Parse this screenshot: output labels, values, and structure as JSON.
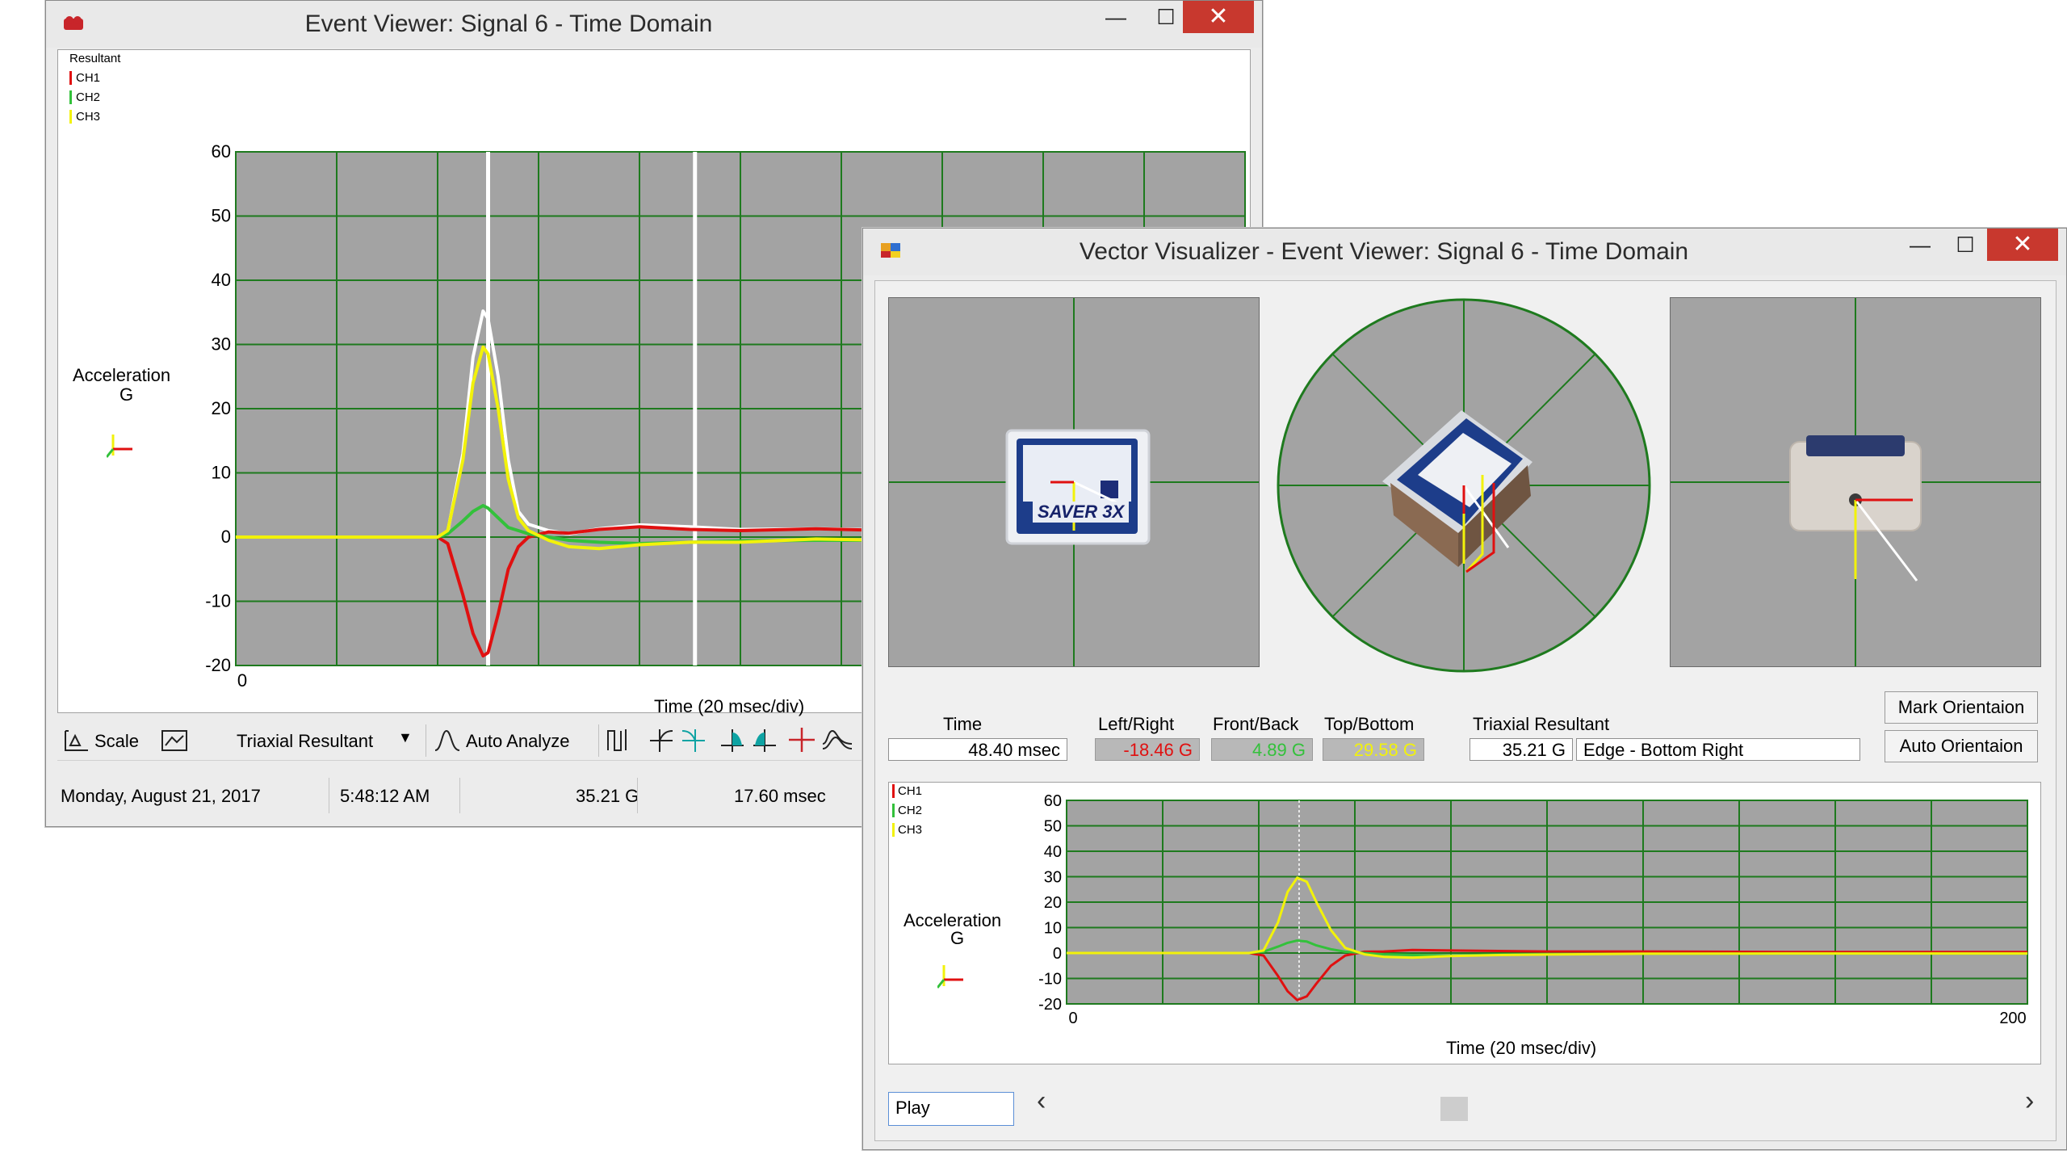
{
  "event_viewer": {
    "title": "Event Viewer: Signal 6    - Time Domain",
    "controls": {
      "minimize": "—",
      "maximize": "☐",
      "close": "✕"
    },
    "legend": {
      "title": "Resultant",
      "items": [
        "CH1",
        "CH2",
        "CH3"
      ]
    },
    "y_axis_label_line1": "Acceleration",
    "y_axis_label_line2": "G",
    "x_axis_label": "Time (20 msec/div)",
    "toolbar": {
      "scale_label": "Scale",
      "mode_select": "Triaxial Resultant",
      "auto_analyze_label": "Auto Analyze"
    },
    "status": {
      "date": "Monday, August 21, 2017",
      "time": "5:48:12 AM",
      "peak": "35.21 G",
      "duration": "17.60 msec"
    }
  },
  "vector_visualizer": {
    "title": "Vector Visualizer - Event Viewer: Signal 6    - Time Domain",
    "controls": {
      "minimize": "—",
      "maximize": "☐",
      "close": "✕"
    },
    "device_logo": "SAVER 3X",
    "readouts": {
      "time_label": "Time",
      "time_value": "48.40 msec",
      "lr_label": "Left/Right",
      "lr_value": "-18.46 G",
      "fb_label": "Front/Back",
      "fb_value": "4.89 G",
      "tb_label": "Top/Bottom",
      "tb_value": "29.58 G",
      "res_label": "Triaxial Resultant",
      "res_value": "35.21 G",
      "edge_value": "Edge - Bottom Right"
    },
    "buttons": {
      "mark": "Mark Orientaion",
      "auto": "Auto Orientaion",
      "play": "Play"
    },
    "legend": {
      "items": [
        "CH1",
        "CH2",
        "CH3"
      ]
    },
    "y_axis_label_line1": "Acceleration",
    "y_axis_label_line2": "G",
    "x_axis_label": "Time (20 msec/div)",
    "scroll": {
      "left": "‹",
      "right": "›"
    }
  },
  "colors": {
    "ch1": "#e01010",
    "ch2": "#33c13b",
    "ch3": "#f2f20a",
    "resultant": "#ffffff",
    "grid": "#1e7a1e",
    "plot_bg": "#a3a3a3"
  },
  "chart_data": [
    {
      "type": "line",
      "title": "",
      "xlabel": "Time (20 msec/div)",
      "ylabel": "Acceleration G",
      "xlim": [
        0,
        200
      ],
      "ylim": [
        -20,
        60
      ],
      "y_ticks": [
        60,
        50,
        40,
        30,
        20,
        10,
        0,
        -10,
        -20
      ],
      "x_ticks": [
        0
      ],
      "grid": true,
      "legend_position": "top-left",
      "series": [
        {
          "name": "Resultant",
          "x": [
            0,
            40,
            42,
            45,
            47,
            49,
            50,
            52,
            54,
            56,
            58,
            62,
            66,
            72,
            80,
            90,
            100,
            115,
            130,
            150
          ],
          "values": [
            0,
            0,
            0.8,
            13,
            28,
            35.2,
            34,
            25,
            12,
            4,
            2,
            1,
            0.5,
            1.3,
            1.9,
            1.6,
            1.2,
            1.3,
            1.1,
            1.0
          ]
        },
        {
          "name": "CH1",
          "x": [
            0,
            40,
            42,
            45,
            47,
            49,
            50,
            52,
            54,
            56,
            58,
            62,
            66,
            72,
            80,
            90,
            100,
            115,
            130,
            150
          ],
          "values": [
            0,
            0,
            -1,
            -9,
            -15,
            -18.5,
            -18,
            -12,
            -5,
            -1.5,
            0,
            0.8,
            0.6,
            1.2,
            1.6,
            1.2,
            1.0,
            1.3,
            1.0,
            1.0
          ]
        },
        {
          "name": "CH2",
          "x": [
            0,
            40,
            42,
            45,
            47,
            49,
            50,
            52,
            54,
            56,
            58,
            62,
            66,
            72,
            80,
            90,
            100,
            115,
            130,
            150
          ],
          "values": [
            0,
            0,
            0.5,
            2.5,
            4,
            4.9,
            4.5,
            3,
            1.5,
            1,
            0.5,
            0,
            -0.5,
            -0.8,
            -1,
            -0.8,
            -0.6,
            -0.5,
            -0.5,
            -0.4
          ]
        },
        {
          "name": "CH3",
          "x": [
            0,
            40,
            42,
            45,
            47,
            49,
            50,
            52,
            54,
            56,
            58,
            62,
            66,
            72,
            80,
            90,
            100,
            115,
            130,
            150
          ],
          "values": [
            0,
            0,
            1,
            12,
            24,
            29.6,
            28.5,
            20,
            9,
            3,
            1,
            -0.5,
            -1.5,
            -1.8,
            -1.2,
            -0.8,
            -0.8,
            -0.3,
            -0.5,
            -0.4
          ]
        }
      ]
    },
    {
      "type": "line",
      "title": "",
      "xlabel": "Time (20 msec/div)",
      "ylabel": "Acceleration G",
      "xlim": [
        0,
        200
      ],
      "ylim": [
        -20,
        60
      ],
      "y_ticks": [
        60,
        50,
        40,
        30,
        20,
        10,
        0,
        -10,
        -20
      ],
      "x_tick_labels": [
        "0",
        "200"
      ],
      "grid": true,
      "cursor_x": 48.4,
      "legend_position": "top-left",
      "series": [
        {
          "name": "CH1",
          "x": [
            0,
            38,
            41,
            44,
            46,
            48,
            50,
            52,
            55,
            58,
            62,
            66,
            72,
            80,
            90,
            100,
            120,
            150,
            170,
            200
          ],
          "values": [
            0,
            0,
            -1,
            -9,
            -15,
            -18.5,
            -17,
            -12,
            -5,
            -1,
            0.5,
            0.6,
            1.2,
            1.0,
            0.8,
            0.6,
            0.6,
            0.4,
            0.4,
            0.4
          ]
        },
        {
          "name": "CH2",
          "x": [
            0,
            38,
            41,
            44,
            46,
            48,
            50,
            52,
            55,
            58,
            62,
            66,
            72,
            80,
            90,
            100,
            120,
            150,
            170,
            200
          ],
          "values": [
            0,
            0,
            0.5,
            2.5,
            4,
            4.9,
            4.5,
            3,
            1.5,
            0.5,
            0,
            -0.5,
            -0.8,
            -1,
            -0.6,
            -0.4,
            -0.3,
            -0.2,
            -0.2,
            -0.2
          ]
        },
        {
          "name": "CH3",
          "x": [
            0,
            38,
            41,
            44,
            46,
            48,
            50,
            52,
            55,
            58,
            62,
            66,
            72,
            80,
            90,
            100,
            120,
            150,
            170,
            200
          ],
          "values": [
            0,
            0,
            1,
            12,
            24,
            29.6,
            28,
            20,
            9,
            2,
            -0.5,
            -1.5,
            -1.8,
            -1.2,
            -0.8,
            -0.6,
            -0.3,
            -0.2,
            -0.2,
            -0.2
          ]
        }
      ]
    }
  ]
}
